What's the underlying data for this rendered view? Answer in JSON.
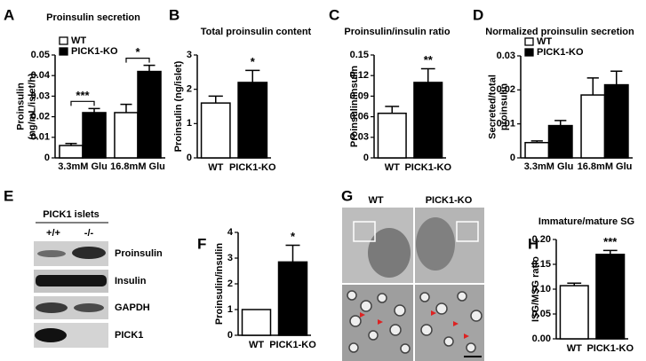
{
  "chart_data": [
    {
      "type": "bar",
      "panel": "A",
      "title": "Proinsulin secretion",
      "ylabel": [
        "Proinsulin",
        "(ng/mL/islet/h)"
      ],
      "categories": [
        "3.3mM Glu",
        "16.8mM Glu"
      ],
      "series": [
        {
          "name": "WT",
          "color": "#ffffff",
          "values": [
            0.006,
            0.022
          ],
          "errors": [
            0.001,
            0.004
          ]
        },
        {
          "name": "PICK1-KO",
          "color": "#000000",
          "values": [
            0.022,
            0.042
          ],
          "errors": [
            0.002,
            0.003
          ]
        }
      ],
      "ylim": [
        0,
        0.05
      ],
      "yticks": [
        0,
        0.01,
        0.02,
        0.03,
        0.04,
        0.05
      ],
      "legend": "upper left",
      "annotations": [
        "***",
        "*"
      ]
    },
    {
      "type": "bar",
      "panel": "B",
      "title": "Total proinsulin content",
      "ylabel": "Proinsulin (ng/islet)",
      "categories": [
        "WT",
        "PICK1-KO"
      ],
      "values": [
        1.6,
        2.2
      ],
      "errors": [
        0.2,
        0.35
      ],
      "colors": [
        "#ffffff",
        "#000000"
      ],
      "ylim": [
        0,
        3
      ],
      "yticks": [
        0,
        1,
        2,
        3
      ],
      "annotations": [
        "*"
      ]
    },
    {
      "type": "bar",
      "panel": "C",
      "title": "Proinsulin/insulin ratio",
      "ylabel": "Proinsulin/insulin",
      "categories": [
        "WT",
        "PICK1-KO"
      ],
      "values": [
        0.065,
        0.11
      ],
      "errors": [
        0.01,
        0.02
      ],
      "colors": [
        "#ffffff",
        "#000000"
      ],
      "ylim": [
        0,
        0.15
      ],
      "yticks": [
        0,
        0.03,
        0.06,
        0.09,
        0.12,
        0.15
      ],
      "annotations": [
        "**"
      ]
    },
    {
      "type": "bar",
      "panel": "D",
      "title": "Normalized proinsulin secretion",
      "ylabel": [
        "Secreted/total",
        "proinsulin"
      ],
      "categories": [
        "3.3mM Glu",
        "16.8mM Glu"
      ],
      "series": [
        {
          "name": "WT",
          "color": "#ffffff",
          "values": [
            0.0045,
            0.0185
          ],
          "errors": [
            0.0005,
            0.005
          ]
        },
        {
          "name": "PICK1-KO",
          "color": "#000000",
          "values": [
            0.0095,
            0.0215
          ],
          "errors": [
            0.0015,
            0.004
          ]
        }
      ],
      "ylim": [
        0,
        0.03
      ],
      "yticks": [
        0,
        0.01,
        0.02,
        0.03
      ],
      "legend": "upper left"
    },
    {
      "type": "bar",
      "panel": "F",
      "ylabel": "Proinsulin/insulin",
      "categories": [
        "WT",
        "PICK1-KO"
      ],
      "values": [
        1,
        2.85
      ],
      "errors": [
        null,
        0.65
      ],
      "colors": [
        "#ffffff",
        "#000000"
      ],
      "ylim": [
        0,
        4
      ],
      "yticks": [
        0,
        1,
        2,
        3,
        4
      ],
      "annotations": [
        "*"
      ]
    },
    {
      "type": "bar",
      "panel": "H",
      "title": "Immature/mature SG",
      "ylabel": "ISG/MSG ratio",
      "categories": [
        "WT",
        "PICK1-KO"
      ],
      "values": [
        0.107,
        0.17
      ],
      "errors": [
        0.005,
        0.008
      ],
      "colors": [
        "#ffffff",
        "#000000"
      ],
      "ylim": [
        0,
        0.2
      ],
      "yticks": [
        {
          "value": 0,
          "label": "0.00"
        },
        {
          "value": 0.05,
          "label": "0.05"
        },
        {
          "value": 0.1,
          "label": "0.10"
        },
        {
          "value": 0.15,
          "label": "0.15"
        },
        {
          "value": 0.2,
          "label": "0.20"
        }
      ],
      "annotations": [
        "***"
      ]
    }
  ],
  "blot": {
    "panel": "E",
    "header": "PICK1 islets",
    "lanes": [
      "+/+",
      "-/-"
    ],
    "rows": [
      "Proinsulin",
      "Insulin",
      "GAPDH",
      "PICK1"
    ]
  },
  "micrographs": {
    "panel": "G",
    "labels": [
      "WT",
      "PICK1-KO"
    ]
  }
}
